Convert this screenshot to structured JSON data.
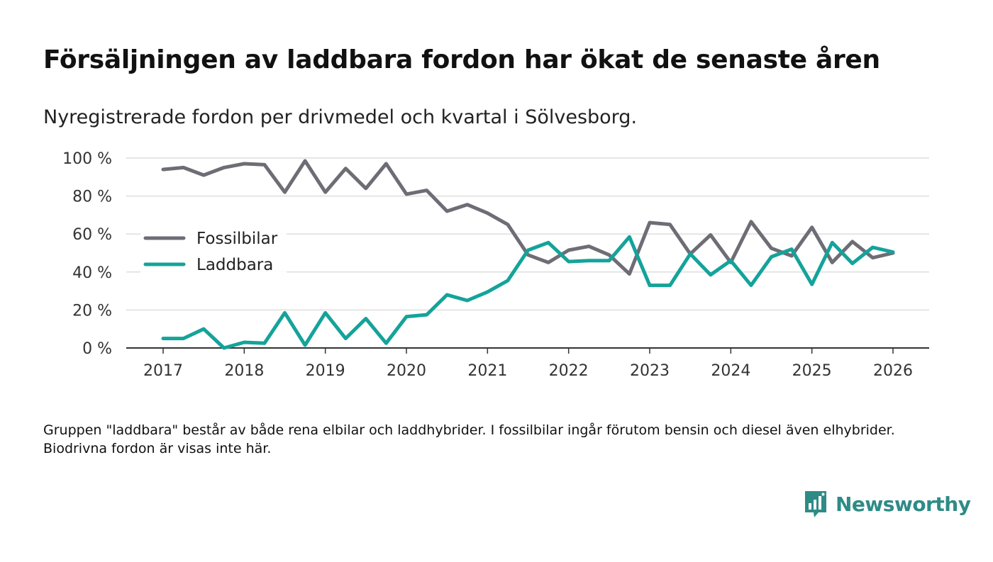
{
  "title": "Försäljningen av laddbara fordon har ökat de senaste åren",
  "subtitle": "Nyregistrerade fordon per drivmedel och kvartal i Sölvesborg.",
  "note": "Gruppen \"laddbara\" består av både rena elbilar och laddhybrider. I fossilbilar ingår förutom bensin och diesel även elhybrider. Biodrivna fordon är visas inte här.",
  "brand": {
    "name": "Newsworthy",
    "icon": "newsworthy-logo-icon"
  },
  "colors": {
    "fossil": "#6e6d75",
    "laddbara": "#14a39a",
    "grid": "#dedede",
    "axis": "#333333",
    "brand": "#2e8b86"
  },
  "chart_data": {
    "type": "line",
    "title": "Försäljningen av laddbara fordon har ökat de senaste åren",
    "xlabel": "",
    "ylabel": "",
    "x_ticks": [
      "2017",
      "2018",
      "2019",
      "2020",
      "2021",
      "2022",
      "2023",
      "2024",
      "2025",
      "2026"
    ],
    "x_range": [
      2017,
      2026
    ],
    "y_ticks": [
      "0 %",
      "20 %",
      "40 %",
      "60 %",
      "80 %",
      "100 %"
    ],
    "ylim": [
      0,
      100
    ],
    "grid": true,
    "legend_position": "middle-left",
    "series": [
      {
        "name": "Fossilbilar",
        "color": "#6e6d75",
        "x": [
          2017,
          2017.25,
          2017.5,
          2017.75,
          2018,
          2018.25,
          2018.5,
          2018.75,
          2019,
          2019.25,
          2019.5,
          2019.75,
          2020,
          2020.25,
          2020.5,
          2020.75,
          2021,
          2021.25,
          2021.5,
          2021.75,
          2022,
          2022.25,
          2022.5,
          2022.75,
          2023,
          2023.25,
          2023.5,
          2023.75,
          2024,
          2024.25,
          2024.5,
          2024.75,
          2025,
          2025.25,
          2025.5,
          2025.75,
          2026
        ],
        "values": [
          94,
          95,
          91,
          95,
          97,
          96.5,
          82,
          98.5,
          82,
          94.5,
          84,
          97,
          81,
          83,
          72,
          75.5,
          71,
          65,
          49,
          45,
          51.5,
          53.5,
          49,
          39,
          66,
          65,
          49.5,
          59.5,
          45,
          66.5,
          52.5,
          48.5,
          63.5,
          45,
          56,
          47.5,
          50
        ]
      },
      {
        "name": "Laddbara",
        "color": "#14a39a",
        "x": [
          2017,
          2017.25,
          2017.5,
          2017.75,
          2018,
          2018.25,
          2018.5,
          2018.75,
          2019,
          2019.25,
          2019.5,
          2019.75,
          2020,
          2020.25,
          2020.5,
          2020.75,
          2021,
          2021.25,
          2021.5,
          2021.75,
          2022,
          2022.25,
          2022.5,
          2022.75,
          2023,
          2023.25,
          2023.5,
          2023.75,
          2024,
          2024.25,
          2024.5,
          2024.75,
          2025,
          2025.25,
          2025.5,
          2025.75,
          2026
        ],
        "values": [
          5,
          5,
          10,
          0,
          3,
          2.5,
          18.5,
          1.5,
          18.5,
          5,
          15.5,
          2.5,
          16.5,
          17.5,
          28,
          25,
          29.5,
          35.5,
          51.5,
          55.5,
          45.5,
          46,
          46,
          58.5,
          33,
          33,
          49.5,
          38.5,
          46,
          33,
          48,
          52,
          33.5,
          55.5,
          44.5,
          53,
          50.5
        ]
      }
    ]
  }
}
